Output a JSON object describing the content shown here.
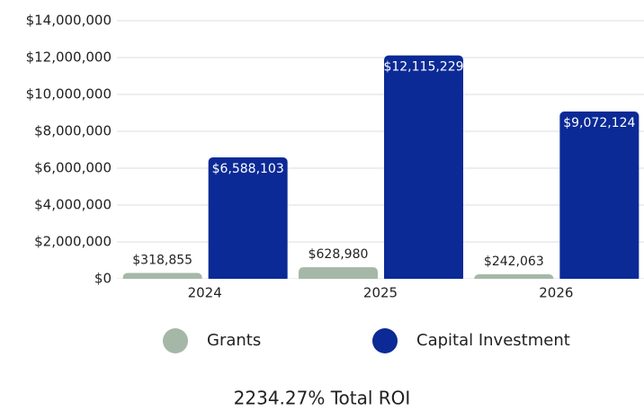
{
  "chart_data": {
    "type": "bar",
    "categories": [
      "2024",
      "2025",
      "2026"
    ],
    "series": [
      {
        "name": "Grants",
        "color": "#a5b8a8",
        "values": [
          318855,
          628980,
          242063
        ],
        "value_labels": [
          "$318,855",
          "$628,980",
          "$242,063"
        ]
      },
      {
        "name": "Capital Investment",
        "color": "#0b2a96",
        "values": [
          6588103,
          12115229,
          9072124
        ],
        "value_labels": [
          "$6,588,103",
          "$12,115,229",
          "$9,072,124"
        ]
      }
    ],
    "ylim": [
      0,
      14000000
    ],
    "yticks": [
      {
        "value": 0,
        "label": "$0"
      },
      {
        "value": 2000000,
        "label": "$2,000,000"
      },
      {
        "value": 4000000,
        "label": "$4,000,000"
      },
      {
        "value": 6000000,
        "label": "$6,000,000"
      },
      {
        "value": 8000000,
        "label": "$8,000,000"
      },
      {
        "value": 10000000,
        "label": "$10,000,000"
      },
      {
        "value": 12000000,
        "label": "$12,000,000"
      },
      {
        "value": 14000000,
        "label": "$14,000,000"
      }
    ],
    "grid": true,
    "legend": "bottom",
    "footer": "2234.27% Total ROI"
  }
}
